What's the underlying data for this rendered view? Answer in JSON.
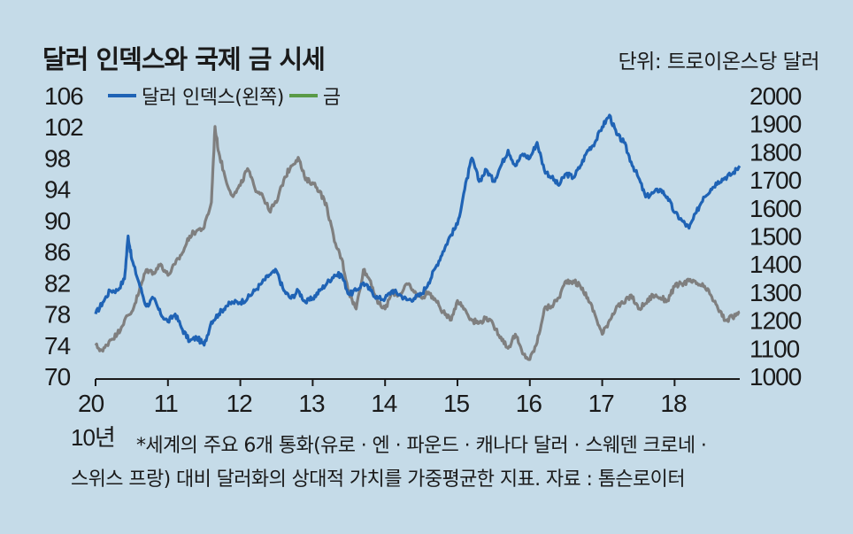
{
  "title": "달러 인덱스와 국제 금 시세",
  "unit": "단위: 트로이온스당 달러",
  "note_line1": "*세계의 주요 6개 통화(유로 · 엔 · 파운드 · 캐나다 달러 · 스웨덴 크로네 ·",
  "note_line2": "스위스 프랑) 대비 달러화의 상대적 가치를 가중평균한 지표. 자료 : 톰슨로이터",
  "x_first_sub": "10년",
  "colors": {
    "dollar": "#1f63b5",
    "gold": "#7f7f7f",
    "gold_legend": "#5a9a47",
    "background": "#c5dbe8"
  },
  "chart_data": {
    "type": "line",
    "title": "달러 인덱스와 국제 금 시세",
    "x_tick_labels": [
      "20",
      "11",
      "12",
      "13",
      "14",
      "15",
      "16",
      "17",
      "18"
    ],
    "x_range": [
      2010.0,
      2018.9
    ],
    "y_left": {
      "ticks": [
        "106",
        "102",
        "98",
        "94",
        "90",
        "86",
        "82",
        "78",
        "74",
        "70"
      ],
      "range": [
        70,
        106
      ]
    },
    "y_right": {
      "ticks": [
        "2000",
        "1900",
        "1800",
        "1700",
        "1600",
        "1500",
        "1400",
        "1300",
        "1200",
        "1100",
        "1000"
      ],
      "range": [
        1000,
        2000
      ]
    },
    "series": [
      {
        "name": "달러 인덱스(왼쪽)",
        "axis": "left",
        "x": [
          2010.0,
          2010.1,
          2010.2,
          2010.3,
          2010.4,
          2010.45,
          2010.5,
          2010.6,
          2010.7,
          2010.8,
          2010.9,
          2011.0,
          2011.1,
          2011.2,
          2011.3,
          2011.4,
          2011.5,
          2011.6,
          2011.7,
          2011.8,
          2011.9,
          2012.0,
          2012.1,
          2012.2,
          2012.3,
          2012.4,
          2012.5,
          2012.6,
          2012.7,
          2012.8,
          2012.9,
          2013.0,
          2013.1,
          2013.2,
          2013.3,
          2013.4,
          2013.5,
          2013.6,
          2013.7,
          2013.8,
          2013.9,
          2014.0,
          2014.1,
          2014.2,
          2014.3,
          2014.4,
          2014.5,
          2014.6,
          2014.7,
          2014.8,
          2014.9,
          2015.0,
          2015.1,
          2015.2,
          2015.3,
          2015.4,
          2015.5,
          2015.6,
          2015.7,
          2015.8,
          2015.9,
          2016.0,
          2016.1,
          2016.2,
          2016.3,
          2016.4,
          2016.5,
          2016.6,
          2016.7,
          2016.8,
          2016.9,
          2017.0,
          2017.1,
          2017.2,
          2017.3,
          2017.4,
          2017.5,
          2017.6,
          2017.7,
          2017.8,
          2017.9,
          2018.0,
          2018.1,
          2018.2,
          2018.3,
          2018.4,
          2018.5,
          2018.6,
          2018.7,
          2018.8,
          2018.9
        ],
        "values": [
          78,
          79.5,
          81,
          81,
          82.5,
          88,
          85,
          82,
          79,
          80,
          78,
          77,
          78,
          76,
          74.5,
          75,
          74,
          77,
          78,
          79,
          79.5,
          79.5,
          80,
          81,
          82,
          83,
          83.5,
          81,
          80,
          81,
          79.5,
          80,
          81,
          82,
          83,
          83,
          80.5,
          81,
          82,
          81,
          80,
          80,
          81,
          80.5,
          79.8,
          80,
          80.5,
          82,
          84,
          86,
          88,
          89.5,
          94,
          98,
          95,
          96.5,
          95,
          97,
          99,
          97,
          98.5,
          98,
          100,
          96.5,
          95.5,
          94.5,
          96,
          95.5,
          97,
          99,
          100,
          102,
          103.5,
          101,
          100,
          97.5,
          95.5,
          93,
          93.5,
          94,
          93,
          91,
          90,
          89,
          91,
          93,
          94,
          95,
          95.5,
          96,
          97
        ]
      },
      {
        "name": "금",
        "axis": "right",
        "x": [
          2010.0,
          2010.1,
          2010.2,
          2010.3,
          2010.4,
          2010.5,
          2010.6,
          2010.7,
          2010.8,
          2010.9,
          2011.0,
          2011.1,
          2011.2,
          2011.3,
          2011.4,
          2011.5,
          2011.6,
          2011.65,
          2011.7,
          2011.8,
          2011.9,
          2012.0,
          2012.1,
          2012.2,
          2012.3,
          2012.4,
          2012.5,
          2012.6,
          2012.7,
          2012.8,
          2012.9,
          2013.0,
          2013.1,
          2013.2,
          2013.3,
          2013.4,
          2013.5,
          2013.6,
          2013.7,
          2013.8,
          2013.9,
          2014.0,
          2014.1,
          2014.2,
          2014.3,
          2014.4,
          2014.5,
          2014.6,
          2014.7,
          2014.8,
          2014.9,
          2015.0,
          2015.1,
          2015.2,
          2015.3,
          2015.4,
          2015.5,
          2015.6,
          2015.7,
          2015.8,
          2015.9,
          2016.0,
          2016.1,
          2016.2,
          2016.3,
          2016.4,
          2016.5,
          2016.6,
          2016.7,
          2016.8,
          2016.9,
          2017.0,
          2017.1,
          2017.2,
          2017.3,
          2017.4,
          2017.5,
          2017.6,
          2017.7,
          2017.8,
          2017.9,
          2018.0,
          2018.1,
          2018.2,
          2018.3,
          2018.4,
          2018.5,
          2018.6,
          2018.7,
          2018.8,
          2018.9
        ],
        "values": [
          1110,
          1090,
          1130,
          1150,
          1200,
          1230,
          1300,
          1380,
          1370,
          1400,
          1360,
          1400,
          1440,
          1500,
          1520,
          1530,
          1620,
          1890,
          1800,
          1700,
          1640,
          1680,
          1740,
          1670,
          1650,
          1590,
          1620,
          1700,
          1750,
          1780,
          1700,
          1690,
          1660,
          1600,
          1480,
          1420,
          1300,
          1240,
          1380,
          1340,
          1260,
          1240,
          1300,
          1290,
          1330,
          1300,
          1280,
          1300,
          1270,
          1230,
          1200,
          1270,
          1240,
          1200,
          1190,
          1210,
          1180,
          1140,
          1100,
          1150,
          1080,
          1060,
          1120,
          1240,
          1250,
          1280,
          1340,
          1340,
          1320,
          1280,
          1220,
          1150,
          1200,
          1250,
          1260,
          1290,
          1240,
          1260,
          1290,
          1280,
          1270,
          1320,
          1330,
          1340,
          1330,
          1320,
          1290,
          1240,
          1200,
          1210,
          1230
        ]
      }
    ]
  }
}
